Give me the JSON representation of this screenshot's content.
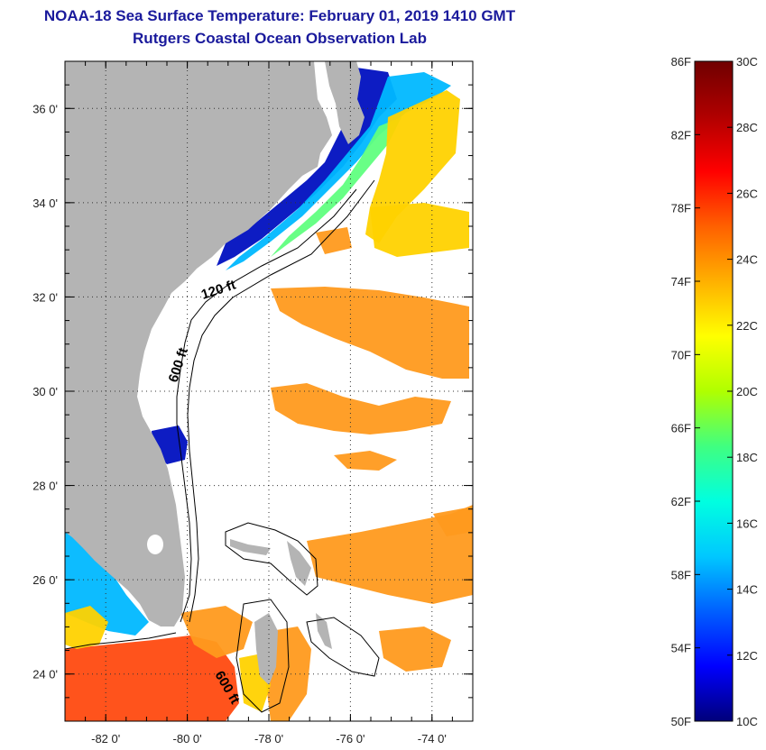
{
  "title": {
    "line1": "NOAA-18 Sea Surface Temperature:  February 01, 2019 1410 GMT",
    "line2": "Rutgers Coastal Ocean Observation Lab"
  },
  "map": {
    "lon_ticks": [
      {
        "value": -82,
        "label": "-82 0'"
      },
      {
        "value": -80,
        "label": "-80 0'"
      },
      {
        "value": -78,
        "label": "-78 0'"
      },
      {
        "value": -76,
        "label": "-76 0'"
      },
      {
        "value": -74,
        "label": "-74 0'"
      }
    ],
    "lat_ticks": [
      {
        "value": 36,
        "label": "36 0'"
      },
      {
        "value": 34,
        "label": "34 0'"
      },
      {
        "value": 32,
        "label": "32 0'"
      },
      {
        "value": 30,
        "label": "30 0'"
      },
      {
        "value": 28,
        "label": "28 0'"
      },
      {
        "value": 26,
        "label": "26 0'"
      },
      {
        "value": 24,
        "label": "24 0'"
      }
    ],
    "lon_range": [
      -83,
      -73
    ],
    "lat_range": [
      23,
      37
    ],
    "contour_labels": [
      "120 ft",
      "600 ft",
      "600 ft"
    ]
  },
  "colorbar": {
    "celsius": {
      "min": 10,
      "max": 30
    },
    "fahrenheit_labels": [
      "86F",
      "82F",
      "78F",
      "74F",
      "70F",
      "66F",
      "62F",
      "58F",
      "54F",
      "50F"
    ],
    "celsius_labels": [
      "30C",
      "28C",
      "26C",
      "24C",
      "22C",
      "20C",
      "18C",
      "16C",
      "14C",
      "12C",
      "10C"
    ],
    "stops": [
      "#00007a",
      "#0000ff",
      "#0060ff",
      "#00c8ff",
      "#00ffe0",
      "#40ff80",
      "#b0ff00",
      "#ffff00",
      "#ffb000",
      "#ff6000",
      "#ff0000",
      "#b00000",
      "#700000"
    ]
  },
  "colors": {
    "land": "#b4b4b4",
    "cold": "#0010c0",
    "cool": "#00b8ff",
    "mid": "#60ff80",
    "warm_yellow": "#ffd200",
    "warm_orange": "#ff9a1e",
    "hot": "#ff4a10"
  }
}
